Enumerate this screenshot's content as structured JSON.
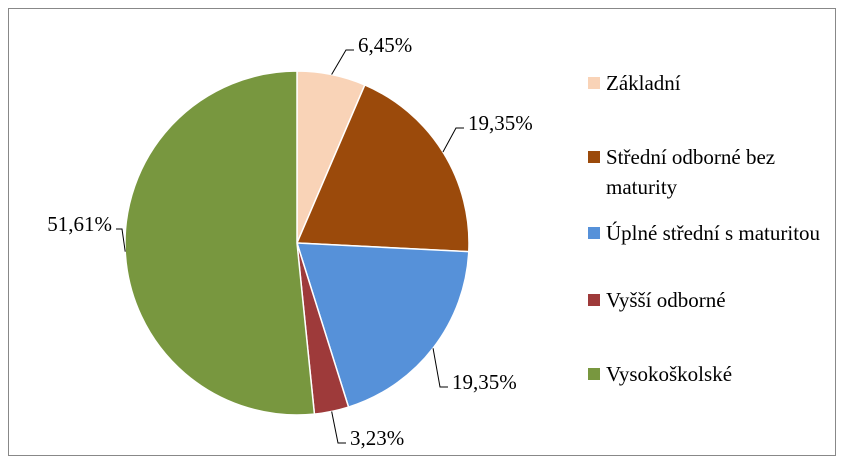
{
  "chart_data": {
    "type": "pie",
    "categories": [
      "Základní",
      "Střední odborné bez maturity",
      "Úplné střední s maturitou",
      "Vyšší odborné",
      "Vysokoškolské"
    ],
    "values": [
      6.45,
      19.35,
      19.35,
      3.23,
      51.61
    ],
    "value_labels": [
      "6,45%",
      "19,35%",
      "19,35%",
      "3,23%",
      "51,61%"
    ],
    "colors": [
      "#f9d3b7",
      "#9b4a0b",
      "#5691d9",
      "#9e3a3a",
      "#78973f"
    ],
    "legend": "right"
  }
}
